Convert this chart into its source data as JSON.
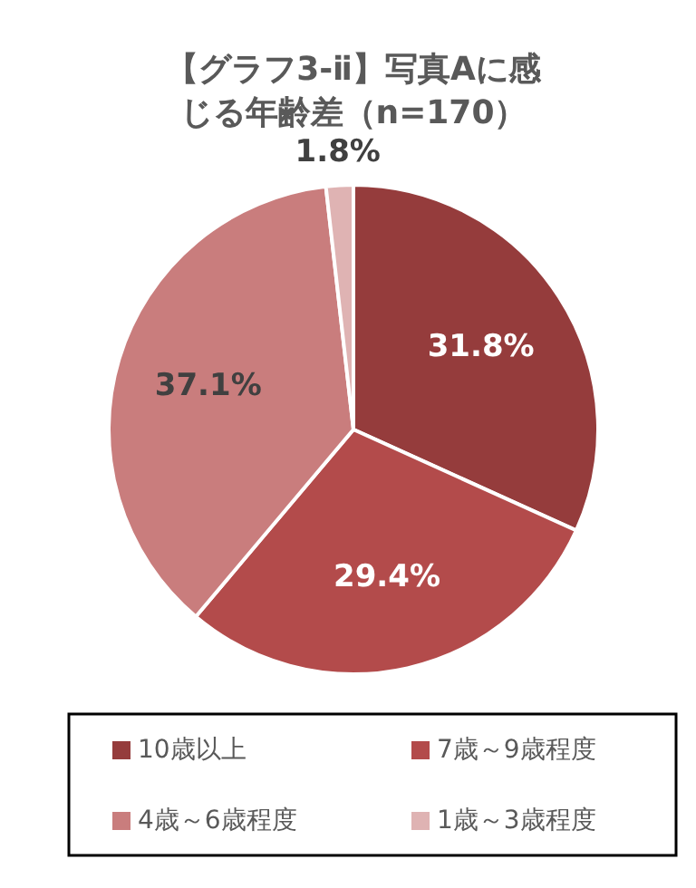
{
  "chart_data": {
    "type": "pie",
    "title": "【グラフ3-ⅱ】写真Aに感じる年齢差（n=170）",
    "categories": [
      "10歳以上",
      "7歳～9歳程度",
      "4歳～6歳程度",
      "1歳～3歳程度"
    ],
    "values": [
      31.8,
      29.4,
      37.1,
      1.8
    ],
    "colors": [
      "#953c3c",
      "#b34b4b",
      "#c97d7d",
      "#dfb3b3"
    ],
    "value_labels": [
      "31.8%",
      "29.4%",
      "37.1%",
      "1.8%"
    ],
    "legend": "bottom"
  }
}
